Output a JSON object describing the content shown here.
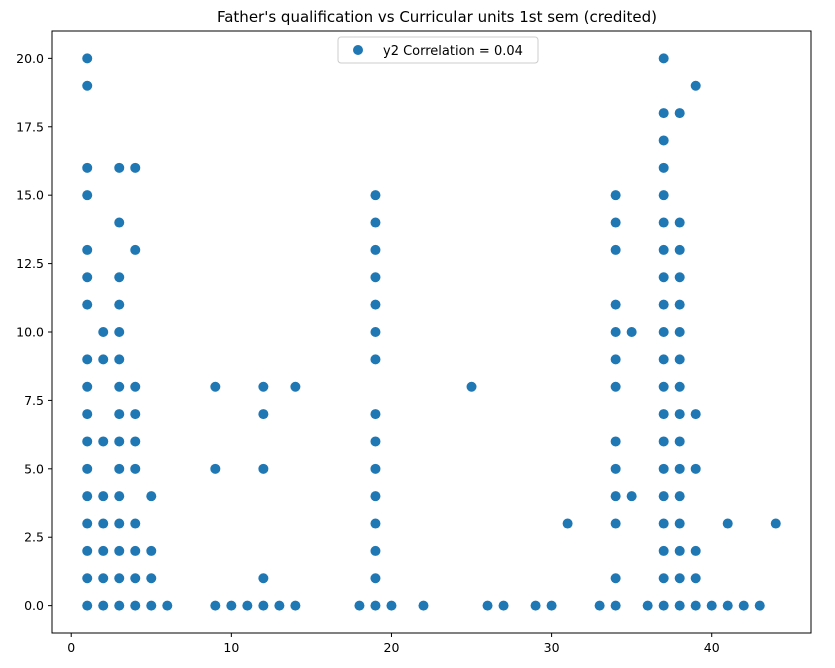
{
  "chart_data": {
    "type": "scatter",
    "title": "Father's qualification vs Curricular units 1st sem (credited)",
    "xlabel": "",
    "ylabel": "",
    "xlim": [
      -1.2,
      46.2
    ],
    "ylim": [
      -1.0,
      21.0
    ],
    "xticks": [
      0,
      10,
      20,
      30,
      40
    ],
    "xtick_labels": [
      "0",
      "10",
      "20",
      "30",
      "40"
    ],
    "yticks": [
      0,
      2.5,
      5,
      7.5,
      10,
      12.5,
      15,
      17.5,
      20
    ],
    "ytick_labels": [
      "0.0",
      "2.5",
      "5.0",
      "7.5",
      "10.0",
      "12.5",
      "15.0",
      "17.5",
      "20.0"
    ],
    "grid": false,
    "legend": {
      "position": "top-center"
    },
    "series": [
      {
        "name": "y2 Correlation = 0.04",
        "color": "#1f77b4",
        "points": [
          [
            1,
            0
          ],
          [
            1,
            1
          ],
          [
            1,
            2
          ],
          [
            1,
            3
          ],
          [
            1,
            4
          ],
          [
            1,
            5
          ],
          [
            1,
            6
          ],
          [
            1,
            7
          ],
          [
            1,
            8
          ],
          [
            1,
            9
          ],
          [
            1,
            11
          ],
          [
            1,
            12
          ],
          [
            1,
            13
          ],
          [
            1,
            15
          ],
          [
            1,
            16
          ],
          [
            1,
            19
          ],
          [
            1,
            20
          ],
          [
            2,
            0
          ],
          [
            2,
            1
          ],
          [
            2,
            2
          ],
          [
            2,
            3
          ],
          [
            2,
            4
          ],
          [
            2,
            6
          ],
          [
            2,
            9
          ],
          [
            2,
            10
          ],
          [
            3,
            0
          ],
          [
            3,
            1
          ],
          [
            3,
            2
          ],
          [
            3,
            3
          ],
          [
            3,
            4
          ],
          [
            3,
            5
          ],
          [
            3,
            6
          ],
          [
            3,
            7
          ],
          [
            3,
            8
          ],
          [
            3,
            9
          ],
          [
            3,
            10
          ],
          [
            3,
            11
          ],
          [
            3,
            12
          ],
          [
            3,
            14
          ],
          [
            3,
            16
          ],
          [
            4,
            0
          ],
          [
            4,
            1
          ],
          [
            4,
            2
          ],
          [
            4,
            3
          ],
          [
            4,
            5
          ],
          [
            4,
            6
          ],
          [
            4,
            7
          ],
          [
            4,
            8
          ],
          [
            4,
            13
          ],
          [
            4,
            16
          ],
          [
            5,
            0
          ],
          [
            5,
            1
          ],
          [
            5,
            2
          ],
          [
            5,
            4
          ],
          [
            6,
            0
          ],
          [
            9,
            0
          ],
          [
            9,
            5
          ],
          [
            9,
            8
          ],
          [
            10,
            0
          ],
          [
            11,
            0
          ],
          [
            12,
            0
          ],
          [
            12,
            1
          ],
          [
            12,
            5
          ],
          [
            12,
            7
          ],
          [
            12,
            8
          ],
          [
            13,
            0
          ],
          [
            14,
            0
          ],
          [
            14,
            8
          ],
          [
            18,
            0
          ],
          [
            19,
            0
          ],
          [
            19,
            1
          ],
          [
            19,
            2
          ],
          [
            19,
            3
          ],
          [
            19,
            4
          ],
          [
            19,
            5
          ],
          [
            19,
            6
          ],
          [
            19,
            7
          ],
          [
            19,
            9
          ],
          [
            19,
            10
          ],
          [
            19,
            11
          ],
          [
            19,
            12
          ],
          [
            19,
            13
          ],
          [
            19,
            14
          ],
          [
            19,
            15
          ],
          [
            20,
            0
          ],
          [
            22,
            0
          ],
          [
            25,
            8
          ],
          [
            26,
            0
          ],
          [
            27,
            0
          ],
          [
            29,
            0
          ],
          [
            30,
            0
          ],
          [
            31,
            3
          ],
          [
            33,
            0
          ],
          [
            34,
            0
          ],
          [
            34,
            1
          ],
          [
            34,
            3
          ],
          [
            34,
            4
          ],
          [
            34,
            5
          ],
          [
            34,
            6
          ],
          [
            34,
            8
          ],
          [
            34,
            9
          ],
          [
            34,
            10
          ],
          [
            34,
            11
          ],
          [
            34,
            13
          ],
          [
            34,
            14
          ],
          [
            34,
            15
          ],
          [
            35,
            4
          ],
          [
            35,
            10
          ],
          [
            36,
            0
          ],
          [
            37,
            0
          ],
          [
            37,
            1
          ],
          [
            37,
            2
          ],
          [
            37,
            3
          ],
          [
            37,
            4
          ],
          [
            37,
            5
          ],
          [
            37,
            6
          ],
          [
            37,
            7
          ],
          [
            37,
            8
          ],
          [
            37,
            9
          ],
          [
            37,
            10
          ],
          [
            37,
            11
          ],
          [
            37,
            12
          ],
          [
            37,
            13
          ],
          [
            37,
            14
          ],
          [
            37,
            15
          ],
          [
            37,
            16
          ],
          [
            37,
            17
          ],
          [
            37,
            18
          ],
          [
            37,
            20
          ],
          [
            38,
            0
          ],
          [
            38,
            1
          ],
          [
            38,
            2
          ],
          [
            38,
            3
          ],
          [
            38,
            4
          ],
          [
            38,
            5
          ],
          [
            38,
            6
          ],
          [
            38,
            7
          ],
          [
            38,
            8
          ],
          [
            38,
            9
          ],
          [
            38,
            10
          ],
          [
            38,
            11
          ],
          [
            38,
            12
          ],
          [
            38,
            13
          ],
          [
            38,
            14
          ],
          [
            38,
            18
          ],
          [
            39,
            0
          ],
          [
            39,
            1
          ],
          [
            39,
            2
          ],
          [
            39,
            5
          ],
          [
            39,
            7
          ],
          [
            39,
            19
          ],
          [
            40,
            0
          ],
          [
            41,
            0
          ],
          [
            41,
            3
          ],
          [
            42,
            0
          ],
          [
            43,
            0
          ],
          [
            44,
            3
          ]
        ]
      }
    ]
  }
}
